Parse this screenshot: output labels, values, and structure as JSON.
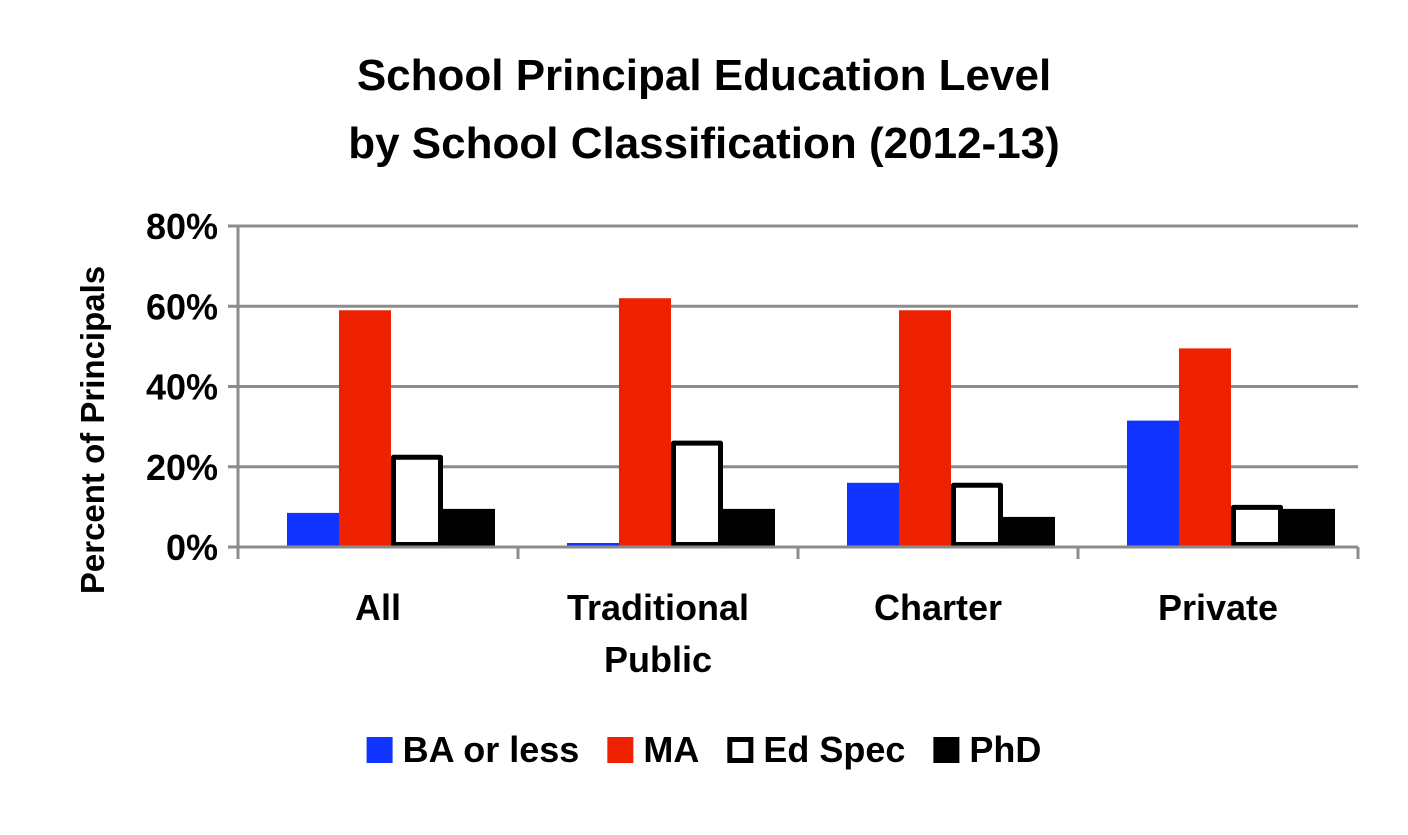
{
  "chart_data": {
    "type": "bar",
    "title": [
      "School Principal Education Level",
      "by School Classification (2012-13)"
    ],
    "xlabel": "",
    "ylabel": "Percent of Principals",
    "ylim": [
      0,
      0.8
    ],
    "yticks": [
      0,
      0.2,
      0.4,
      0.6,
      0.8
    ],
    "ytick_labels": [
      "0%",
      "20%",
      "40%",
      "60%",
      "80%"
    ],
    "grid": true,
    "legend_position": "bottom",
    "categories": [
      [
        "All"
      ],
      [
        "Traditional",
        "Public"
      ],
      [
        "Charter"
      ],
      [
        "Private"
      ]
    ],
    "series": [
      {
        "name": "BA or less",
        "values": [
          0.085,
          0.01,
          0.16,
          0.315
        ],
        "color": "#1133ff",
        "outline": false
      },
      {
        "name": "MA",
        "values": [
          0.59,
          0.62,
          0.59,
          0.495
        ],
        "color": "#ee2200",
        "outline": false
      },
      {
        "name": "Ed Spec",
        "values": [
          0.23,
          0.265,
          0.16,
          0.105
        ],
        "color": "#ffffff",
        "outline": true
      },
      {
        "name": "PhD",
        "values": [
          0.095,
          0.095,
          0.075,
          0.095
        ],
        "color": "#000000",
        "outline": false
      }
    ],
    "colors": {
      "grid": "#8c8c8c",
      "axis": "#8c8c8c",
      "text": "#000000"
    }
  }
}
